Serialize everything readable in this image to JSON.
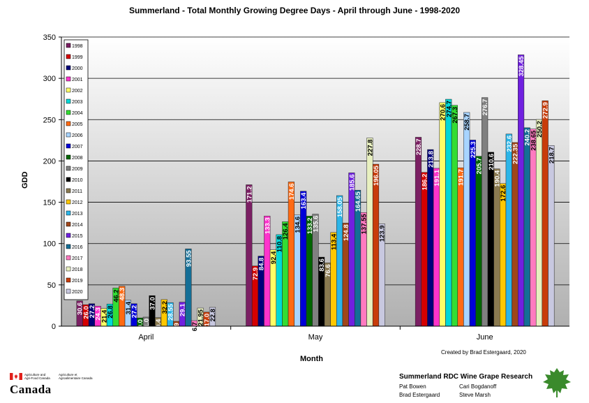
{
  "title": "Summerland - Total Monthly Growing Degree Days - April through June - 1998-2020",
  "credit": "Created by Brad Estergaard, 2020",
  "footer": {
    "agency_en": [
      "Agriculture and",
      "Agri-Food Canada"
    ],
    "agency_fr": [
      "Agriculture et",
      "Agroalimentaire Canada"
    ],
    "wordmark": "Canada",
    "research_title": "Summerland RDC Wine Grape Research",
    "staff": [
      "Pat Bowen",
      "Cari Bogdanoff",
      "Brad Estergaard",
      "Steve Marsh"
    ],
    "leaf_color": "#3a8a2c",
    "flag_red": "#e0201b"
  },
  "chart_data": {
    "type": "bar",
    "title": "Summerland - Total Monthly Growing Degree Days - April through June - 1998-2020",
    "xlabel": "Month",
    "ylabel": "GDD",
    "ylim": [
      0,
      350
    ],
    "yticks": [
      0,
      50,
      100,
      150,
      200,
      250,
      300,
      350
    ],
    "grid": true,
    "legend_position": "top-left",
    "categories": [
      "April",
      "May",
      "June"
    ],
    "series": [
      {
        "name": "1998",
        "color": "#7b1f63",
        "values": [
          30.6,
          171.2,
          228.7
        ],
        "labels": [
          "30.6",
          "171.2",
          "228.7"
        ]
      },
      {
        "name": "1999",
        "color": "#d60000",
        "values": [
          26.0,
          72.9,
          186.2
        ],
        "labels": [
          "26.0",
          "72.9",
          "186.2"
        ]
      },
      {
        "name": "2000",
        "color": "#00007a",
        "values": [
          27.2,
          84.8,
          213.8
        ],
        "labels": [
          "27.2",
          "84.8",
          "213.8"
        ]
      },
      {
        "name": "2001",
        "color": "#ff33cc",
        "values": [
          24.3,
          133.3,
          191.1
        ],
        "labels": [
          "24.3",
          "133.3",
          "191.1"
        ]
      },
      {
        "name": "2002",
        "color": "#ffff66",
        "values": [
          21.4,
          92.4,
          270.6
        ],
        "labels": [
          "21.4",
          "92.4",
          "270.6"
        ]
      },
      {
        "name": "2003",
        "color": "#00d8d8",
        "values": [
          26.8,
          110.8,
          274.7
        ],
        "labels": [
          "26.8",
          "110.8",
          "274.7"
        ]
      },
      {
        "name": "2004",
        "color": "#33dd33",
        "values": [
          46.2,
          126.4,
          267.3
        ],
        "labels": [
          "46.2",
          "126.4",
          "267.3"
        ]
      },
      {
        "name": "2005",
        "color": "#ff6a13",
        "values": [
          48.3,
          174.6,
          191.7
        ],
        "labels": [
          "48.3",
          "174.6",
          "191.7"
        ]
      },
      {
        "name": "2006",
        "color": "#a8d4ff",
        "values": [
          31.4,
          134.6,
          258.7
        ],
        "labels": [
          "31.4",
          "134.6",
          "258.7"
        ]
      },
      {
        "name": "2007",
        "color": "#0000d8",
        "values": [
          27.2,
          163.4,
          225.3
        ],
        "labels": [
          "27.2",
          "163.4",
          "225.3"
        ]
      },
      {
        "name": "2008",
        "color": "#006600",
        "values": [
          10.0,
          133.2,
          205.7
        ],
        "labels": [
          "10.0",
          "133.2",
          "205.7"
        ]
      },
      {
        "name": "2009",
        "color": "#808080",
        "values": [
          11.0,
          135.6,
          276.7
        ],
        "labels": [
          "11.0",
          "135.6",
          "276.7"
        ]
      },
      {
        "name": "2010",
        "color": "#000000",
        "values": [
          37.0,
          83.6,
          210.6
        ],
        "labels": [
          "37.0",
          "83.6",
          "210.6"
        ]
      },
      {
        "name": "2011",
        "color": "#8a7a50",
        "values": [
          10.4,
          76.6,
          190.4
        ],
        "labels": [
          "10.4",
          "76.6",
          "190.4"
        ]
      },
      {
        "name": "2012",
        "color": "#ffc800",
        "values": [
          32.2,
          113.4,
          172.6
        ],
        "labels": [
          "32.2",
          "113.4",
          "172.6"
        ]
      },
      {
        "name": "2013",
        "color": "#2bb5e8",
        "values": [
          28.55,
          158.05,
          232.6
        ],
        "labels": [
          "28.55",
          "158.05",
          "232.6"
        ]
      },
      {
        "name": "2014",
        "color": "#a0461a",
        "values": [
          5.9,
          124.8,
          222.35
        ],
        "labels": [
          "5.9",
          "124.8",
          "222.35"
        ]
      },
      {
        "name": "2015",
        "color": "#7020e0",
        "values": [
          29.1,
          185.6,
          328.45
        ],
        "labels": [
          "29.1",
          "185.6",
          "328.45"
        ]
      },
      {
        "name": "2016",
        "color": "#146e96",
        "values": [
          93.55,
          164.65,
          240.2
        ],
        "labels": [
          "93.55",
          "164.65",
          "240.2"
        ]
      },
      {
        "name": "2017",
        "color": "#ff7ac0",
        "values": [
          6.7,
          137.55,
          238.65
        ],
        "labels": [
          "6.7",
          "137.55",
          "238.65"
        ]
      },
      {
        "name": "2018",
        "color": "#e8f0c0",
        "values": [
          21.95,
          227.8,
          250.2
        ],
        "labels": [
          "21.95",
          "227.8",
          "250.2"
        ]
      },
      {
        "name": "2019",
        "color": "#c83c0a",
        "values": [
          17.0,
          196.05,
          272.9
        ],
        "labels": [
          "17.0",
          "196.05",
          "272.9"
        ]
      },
      {
        "name": "2020",
        "color": "#c8c8e0",
        "values": [
          22.8,
          123.9,
          218.7
        ],
        "labels": [
          "22.8",
          "123.9",
          "218.7"
        ]
      }
    ]
  }
}
